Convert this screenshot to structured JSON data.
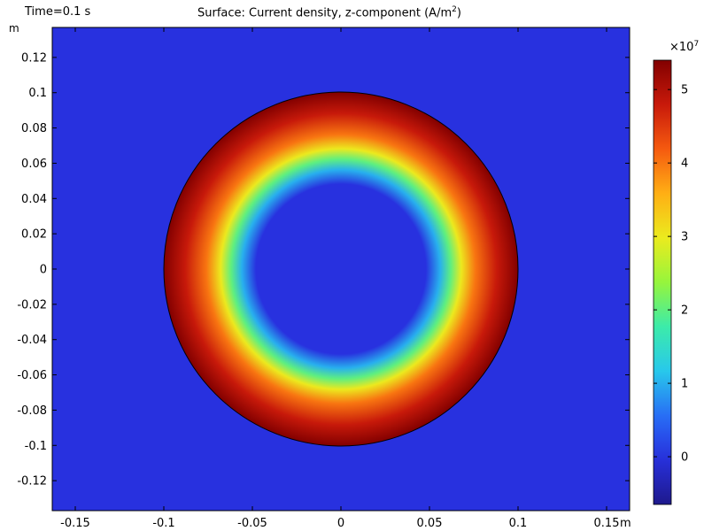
{
  "header": {
    "time_label": "Time=0.1 s",
    "title_main": "Surface: Current density, z-component (A/m",
    "title_sup": "2",
    "title_end": ")"
  },
  "chart_data": {
    "type": "heatmap",
    "title": "Surface: Current density, z-component (A/m²)",
    "time": "Time=0.1 s",
    "x_unit": "m",
    "y_unit": "m",
    "xlim": [
      -0.163,
      0.163
    ],
    "ylim": [
      -0.137,
      0.137
    ],
    "x_ticks": [
      -0.15,
      -0.1,
      -0.05,
      0,
      0.05,
      0.1,
      0.15
    ],
    "x_tick_labels": [
      "-0.15",
      "-0.1",
      "-0.05",
      "0",
      "0.05",
      "0.1",
      "0.15"
    ],
    "y_ticks": [
      0.12,
      0.1,
      0.08,
      0.06,
      0.04,
      0.02,
      0,
      -0.02,
      -0.04,
      -0.06,
      -0.08,
      -0.1,
      -0.12
    ],
    "y_tick_labels": [
      "0.12",
      "0.1",
      "0.08",
      "0.06",
      "0.04",
      "0.02",
      "0",
      "-0.02",
      "-0.04",
      "-0.06",
      "-0.08",
      "-0.1",
      "-0.12"
    ],
    "background_value": 0,
    "conductor": {
      "shape": "disk",
      "center": [
        0,
        0
      ],
      "radius": 0.1,
      "inner_low_radius": 0.048,
      "value_profile": [
        {
          "r": 0.0,
          "v": 0.0
        },
        {
          "r": 0.048,
          "v": 0.0
        },
        {
          "r": 0.056,
          "v": 1.0
        },
        {
          "r": 0.062,
          "v": 2.0
        },
        {
          "r": 0.068,
          "v": 3.0
        },
        {
          "r": 0.076,
          "v": 4.0
        },
        {
          "r": 0.088,
          "v": 4.8
        },
        {
          "r": 0.1,
          "v": 5.4
        }
      ]
    },
    "colorbar": {
      "colormap": "rainbow",
      "exponent_base": "×10",
      "exponent_power": "7",
      "min": -0.65,
      "max": 5.4,
      "ticks": [
        0,
        1,
        2,
        3,
        4,
        5
      ],
      "tick_labels": [
        "0",
        "1",
        "2",
        "3",
        "4",
        "5"
      ]
    }
  }
}
